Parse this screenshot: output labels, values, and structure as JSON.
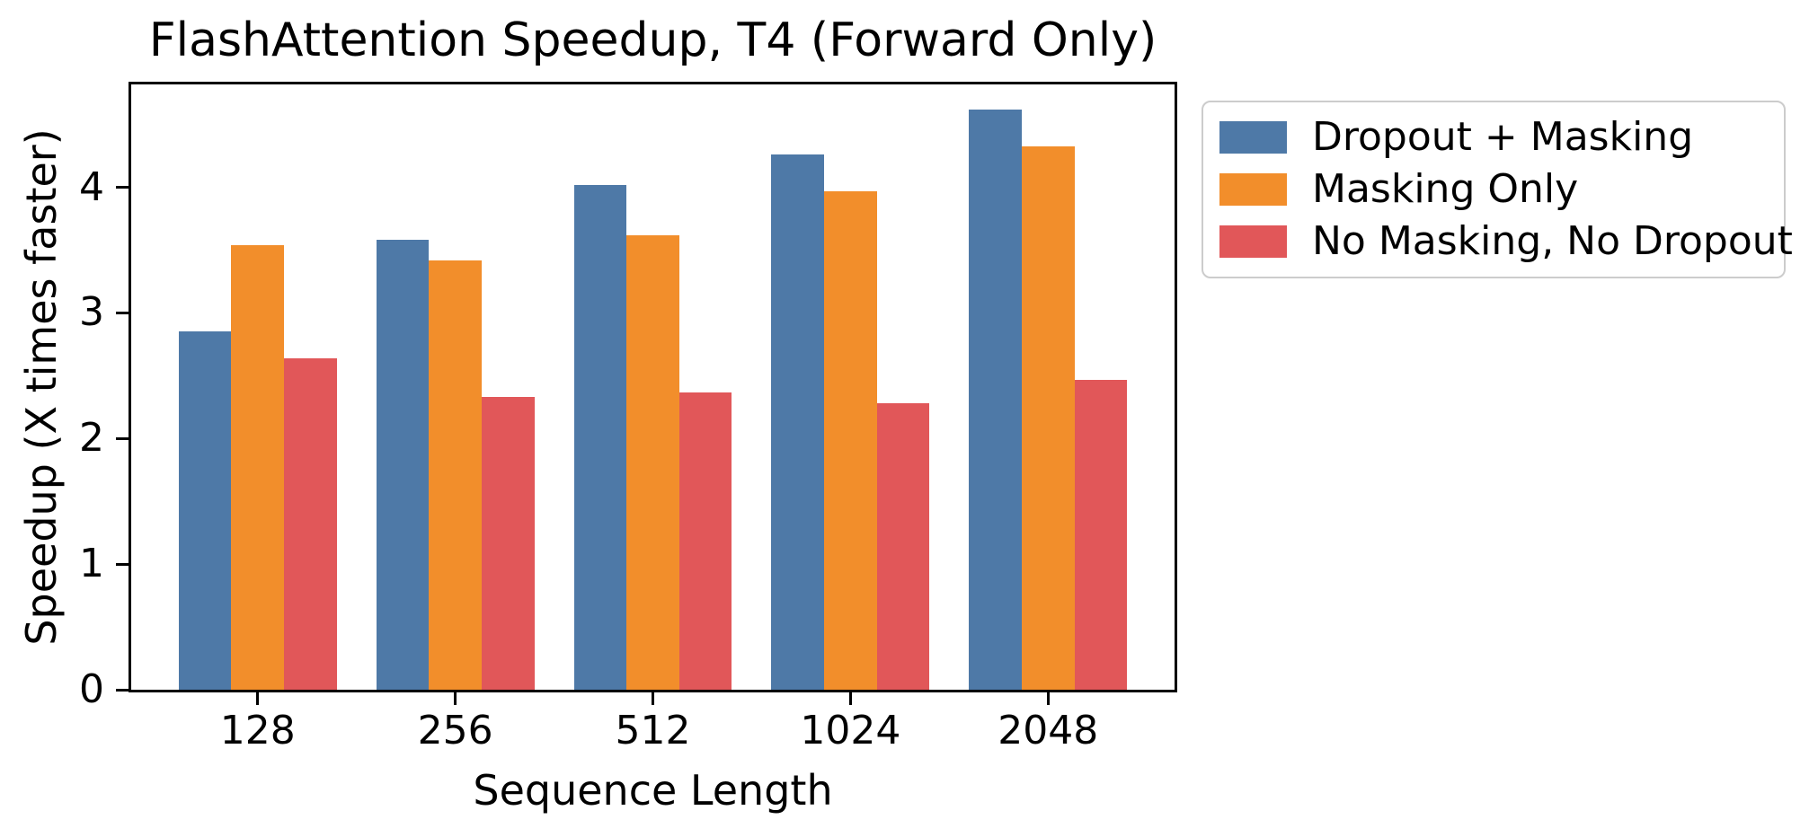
{
  "chart_data": {
    "type": "bar",
    "title": "FlashAttention Speedup, T4 (Forward Only)",
    "xlabel": "Sequence Length",
    "ylabel": "Speedup (X times faster)",
    "categories": [
      "128",
      "256",
      "512",
      "1024",
      "2048"
    ],
    "series": [
      {
        "name": "Dropout + Masking",
        "color": "#4E79A7",
        "values": [
          2.85,
          3.58,
          4.02,
          4.26,
          4.62
        ]
      },
      {
        "name": "Masking Only",
        "color": "#F28E2B",
        "values": [
          3.54,
          3.42,
          3.62,
          3.97,
          4.33
        ]
      },
      {
        "name": "No Masking, No Dropout",
        "color": "#E15759",
        "values": [
          2.64,
          2.33,
          2.37,
          2.28,
          2.47
        ]
      }
    ],
    "yticks": [
      0,
      1,
      2,
      3,
      4
    ],
    "ylim": [
      0,
      4.82
    ],
    "xlim": [
      -0.64,
      4.64
    ],
    "bar_width_units": 0.2667,
    "grid": false,
    "legend_position": "outside-right"
  },
  "colors": {
    "axis": "#000000",
    "text": "#000000",
    "legend_border": "#cccccc",
    "background": "#ffffff"
  }
}
